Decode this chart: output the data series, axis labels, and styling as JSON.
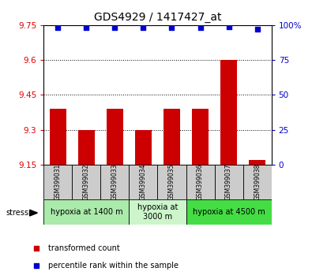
{
  "title": "GDS4929 / 1417427_at",
  "samples": [
    "GSM399031",
    "GSM399032",
    "GSM399033",
    "GSM399034",
    "GSM399035",
    "GSM399036",
    "GSM399037",
    "GSM399038"
  ],
  "bar_values": [
    9.39,
    9.3,
    9.39,
    9.3,
    9.39,
    9.39,
    9.6,
    9.17
  ],
  "percentile_values": [
    98,
    98,
    98,
    98,
    98,
    98,
    99,
    97
  ],
  "ylim": [
    9.15,
    9.75
  ],
  "y_ticks": [
    9.15,
    9.3,
    9.45,
    9.6,
    9.75
  ],
  "y2_ticks": [
    0,
    25,
    50,
    75,
    100
  ],
  "bar_color": "#cc0000",
  "dot_color": "#0000cc",
  "bar_width": 0.6,
  "groups": [
    {
      "label": "hypoxia at 1400 m",
      "start": 0,
      "end": 3,
      "color": "#aaeaaa"
    },
    {
      "label": "hypoxia at\n3000 m",
      "start": 3,
      "end": 5,
      "color": "#ccf5cc"
    },
    {
      "label": "hypoxia at 4500 m",
      "start": 5,
      "end": 8,
      "color": "#44dd44"
    }
  ],
  "stress_label": "stress",
  "legend_red": "transformed count",
  "legend_blue": "percentile rank within the sample",
  "ytick_color": "#dd0000",
  "y2tick_color": "#0000cc",
  "sample_box_color": "#cccccc",
  "title_fontsize": 10,
  "tick_fontsize": 7.5,
  "sample_fontsize": 5.5,
  "group_fontsize": 7,
  "legend_fontsize": 7
}
